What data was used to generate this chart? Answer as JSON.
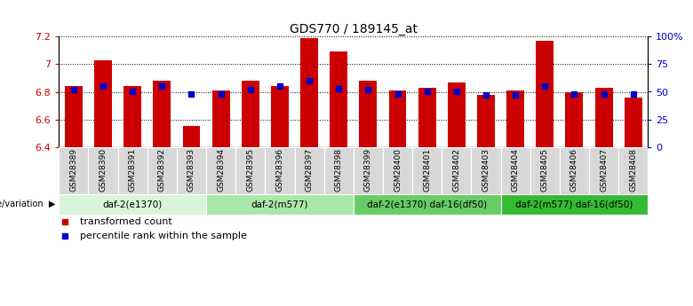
{
  "title": "GDS770 / 189145_at",
  "samples": [
    "GSM28389",
    "GSM28390",
    "GSM28391",
    "GSM28392",
    "GSM28393",
    "GSM28394",
    "GSM28395",
    "GSM28396",
    "GSM28397",
    "GSM28398",
    "GSM28399",
    "GSM28400",
    "GSM28401",
    "GSM28402",
    "GSM28403",
    "GSM28404",
    "GSM28405",
    "GSM28406",
    "GSM28407",
    "GSM28408"
  ],
  "transformed_count": [
    6.84,
    7.03,
    6.84,
    6.88,
    6.55,
    6.81,
    6.88,
    6.84,
    7.19,
    7.09,
    6.88,
    6.81,
    6.83,
    6.87,
    6.78,
    6.81,
    7.17,
    6.8,
    6.83,
    6.76
  ],
  "percentile_rank": [
    52,
    55,
    50,
    55,
    48,
    48,
    52,
    55,
    60,
    53,
    52,
    48,
    50,
    50,
    47,
    47,
    55,
    48,
    48,
    48
  ],
  "ylim_left": [
    6.4,
    7.2
  ],
  "ylim_right": [
    0,
    100
  ],
  "yticks_left": [
    6.4,
    6.6,
    6.8,
    7.0,
    7.2
  ],
  "ytick_labels_left": [
    "6.4",
    "6.6",
    "6.8",
    "7",
    "7.2"
  ],
  "yticks_right": [
    0,
    25,
    50,
    75,
    100
  ],
  "ytick_labels_right": [
    "0",
    "25",
    "50",
    "75",
    "100%"
  ],
  "groups": [
    {
      "label": "daf-2(e1370)",
      "start": 0,
      "end": 5,
      "color": "#d9f5d9"
    },
    {
      "label": "daf-2(m577)",
      "start": 5,
      "end": 10,
      "color": "#aae8aa"
    },
    {
      "label": "daf-2(e1370) daf-16(df50)",
      "start": 10,
      "end": 15,
      "color": "#66cc66"
    },
    {
      "label": "daf-2(m577) daf-16(df50)",
      "start": 15,
      "end": 20,
      "color": "#33bb33"
    }
  ],
  "bar_color": "#cc0000",
  "blue_marker_color": "#0000cc",
  "base_value": 6.4,
  "legend_items": [
    {
      "label": "transformed count",
      "color": "#cc0000"
    },
    {
      "label": "percentile rank within the sample",
      "color": "#0000cc"
    }
  ],
  "left_tick_color": "#cc0000",
  "right_tick_color": "#0000cc",
  "bar_width": 0.6,
  "blue_marker_size": 5
}
